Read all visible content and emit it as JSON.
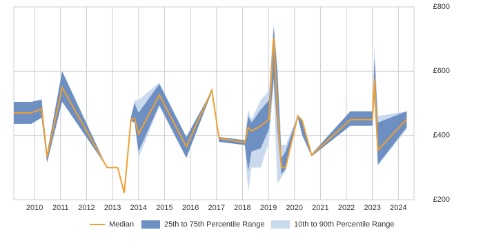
{
  "chart_data": {
    "type": "line",
    "x": [
      2009.2,
      2009.87,
      2010.27,
      2010.48,
      2011.06,
      2012.79,
      2013.2,
      2013.45,
      2013.71,
      2013.85,
      2014.0,
      2014.8,
      2015.84,
      2016.82,
      2017.1,
      2018.09,
      2018.22,
      2018.35,
      2018.7,
      2019.02,
      2019.2,
      2019.34,
      2019.5,
      2019.66,
      2020.13,
      2020.3,
      2020.66,
      2022.15,
      2023.0,
      2023.08,
      2023.21,
      2024.32
    ],
    "series": [
      {
        "name": "10th to 90th Percentile Range",
        "color": "#c9d9ee",
        "low": [
          436,
          436,
          455,
          315,
          505,
          300,
          null,
          null,
          445,
          440,
          330,
          490,
          330,
          535,
          380,
          370,
          225,
          300,
          300,
          380,
          560,
          250,
          270,
          290,
          455,
          400,
          335,
          430,
          430,
          500,
          305,
          420
        ],
        "high": [
          504,
          504,
          512,
          345,
          600,
          300,
          null,
          null,
          458,
          510,
          510,
          565,
          395,
          540,
          395,
          385,
          480,
          450,
          510,
          540,
          750,
          620,
          370,
          370,
          462,
          450,
          342,
          475,
          475,
          680,
          460,
          475
        ]
      },
      {
        "name": "25th to 75th Percentile Range",
        "color": "#6d8fc1",
        "low": [
          436,
          436,
          455,
          315,
          505,
          300,
          null,
          null,
          445,
          440,
          350,
          495,
          330,
          535,
          380,
          370,
          290,
          350,
          360,
          420,
          580,
          420,
          280,
          295,
          455,
          400,
          335,
          430,
          430,
          520,
          310,
          425
        ],
        "high": [
          504,
          504,
          512,
          345,
          600,
          300,
          null,
          null,
          458,
          500,
          470,
          560,
          395,
          540,
          395,
          385,
          460,
          440,
          480,
          510,
          735,
          600,
          330,
          350,
          462,
          450,
          342,
          475,
          475,
          640,
          440,
          475
        ]
      },
      {
        "name": "Median",
        "color": "#f0a030",
        "values": [
          470,
          470,
          483,
          333,
          549,
          300,
          300,
          221,
          451,
          453,
          404,
          526,
          365,
          541,
          391,
          378,
          425,
          414,
          429,
          451,
          704,
          479,
          300,
          300,
          461,
          446,
          339,
          449,
          449,
          575,
          354,
          451
        ]
      }
    ],
    "xlim": [
      2009.2,
      2024.6
    ],
    "xticks": [
      2010,
      2011,
      2012,
      2013,
      2014,
      2015,
      2016,
      2017,
      2018,
      2019,
      2020,
      2021,
      2022,
      2023,
      2024
    ],
    "ylim": [
      200,
      800
    ],
    "yticks": [
      {
        "value": 200,
        "label": "£200"
      },
      {
        "value": 400,
        "label": "£400"
      },
      {
        "value": 600,
        "label": "£600"
      },
      {
        "value": 800,
        "label": "£800"
      }
    ],
    "grid": true
  }
}
